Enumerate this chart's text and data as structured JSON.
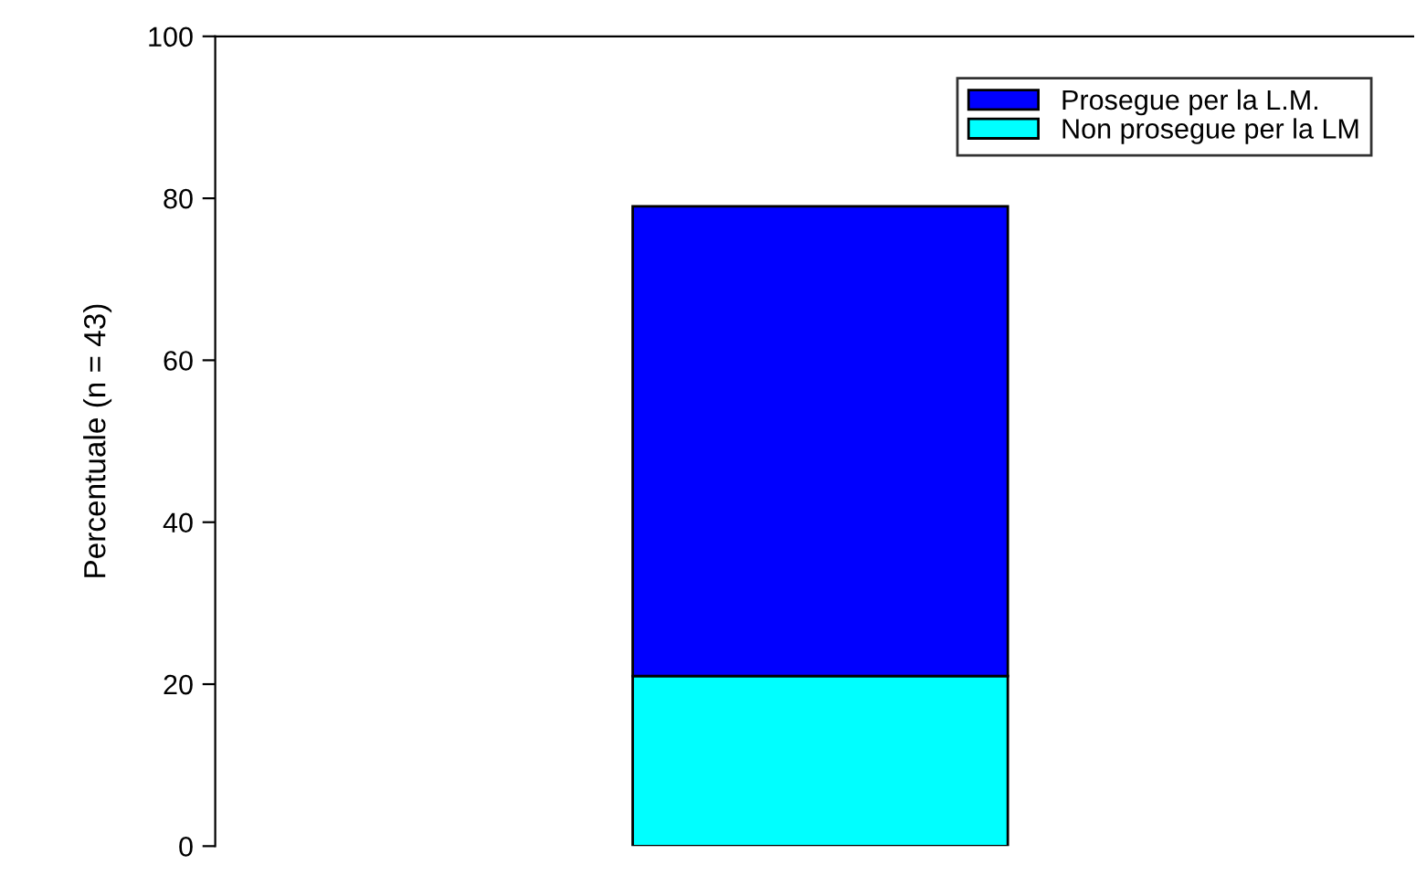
{
  "chart_data": {
    "type": "bar",
    "stacked": true,
    "categories": [
      null
    ],
    "ylabel": "Percentuale (n = 43)",
    "series": [
      {
        "name": "Non prosegue per la LM",
        "color": "#00ffff",
        "values": [
          21
        ]
      },
      {
        "name": "Prosegue per la L.M.",
        "color": "#0000ff",
        "values": [
          58
        ]
      }
    ],
    "ylim": [
      0,
      100
    ],
    "yticks": [
      0,
      20,
      40,
      60,
      80,
      100
    ],
    "grid": false,
    "legend": "top right"
  }
}
